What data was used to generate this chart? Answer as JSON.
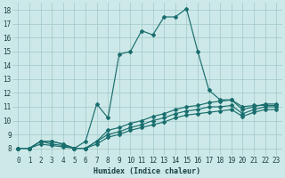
{
  "xlabel": "Humidex (Indice chaleur)",
  "bg_color": "#cde8e8",
  "grid_color": "#a0c8c8",
  "line_color": "#1a6e6e",
  "xlim": [
    -0.5,
    23.5
  ],
  "ylim": [
    7.5,
    18.5
  ],
  "xticks": [
    0,
    1,
    2,
    3,
    4,
    5,
    6,
    7,
    8,
    9,
    10,
    11,
    12,
    13,
    14,
    15,
    16,
    17,
    18,
    19,
    20,
    21,
    22,
    23
  ],
  "yticks": [
    8,
    9,
    10,
    11,
    12,
    13,
    14,
    15,
    16,
    17,
    18
  ],
  "lines": [
    {
      "x": [
        0,
        1,
        2,
        3,
        4,
        5,
        6,
        7,
        8,
        9,
        10,
        11,
        12,
        13,
        14,
        15,
        16,
        17,
        18,
        19,
        20,
        21,
        22,
        23
      ],
      "y": [
        8,
        8,
        8.5,
        8.5,
        8.3,
        8,
        8.5,
        11.2,
        10.2,
        14.8,
        15,
        16.5,
        16.2,
        17.5,
        17.5,
        18.1,
        15.0,
        12.2,
        11.5,
        11.5,
        11.0,
        11.1,
        11.1,
        11.1
      ]
    },
    {
      "x": [
        0,
        1,
        2,
        3,
        4,
        5,
        6,
        7,
        8,
        9,
        10,
        11,
        12,
        13,
        14,
        15,
        16,
        17,
        18,
        19,
        20,
        21,
        22,
        23
      ],
      "y": [
        8,
        8,
        8.5,
        8.5,
        8.3,
        8,
        8,
        8.5,
        9.3,
        9.5,
        9.8,
        10.0,
        10.3,
        10.5,
        10.8,
        11.0,
        11.1,
        11.3,
        11.4,
        11.5,
        10.8,
        11.0,
        11.2,
        11.2
      ]
    },
    {
      "x": [
        0,
        1,
        2,
        3,
        4,
        5,
        6,
        7,
        8,
        9,
        10,
        11,
        12,
        13,
        14,
        15,
        16,
        17,
        18,
        19,
        20,
        21,
        22,
        23
      ],
      "y": [
        8,
        8,
        8.5,
        8.3,
        8.2,
        8,
        8,
        8.5,
        9.0,
        9.2,
        9.5,
        9.7,
        10.0,
        10.2,
        10.5,
        10.7,
        10.8,
        11.0,
        11.0,
        11.1,
        10.5,
        10.8,
        11.0,
        11.0
      ]
    },
    {
      "x": [
        0,
        1,
        2,
        3,
        4,
        5,
        6,
        7,
        8,
        9,
        10,
        11,
        12,
        13,
        14,
        15,
        16,
        17,
        18,
        19,
        20,
        21,
        22,
        23
      ],
      "y": [
        8,
        8,
        8.3,
        8.2,
        8.1,
        8,
        8,
        8.3,
        8.8,
        9.0,
        9.3,
        9.5,
        9.7,
        9.9,
        10.2,
        10.4,
        10.5,
        10.6,
        10.7,
        10.8,
        10.3,
        10.6,
        10.8,
        10.8
      ]
    }
  ]
}
